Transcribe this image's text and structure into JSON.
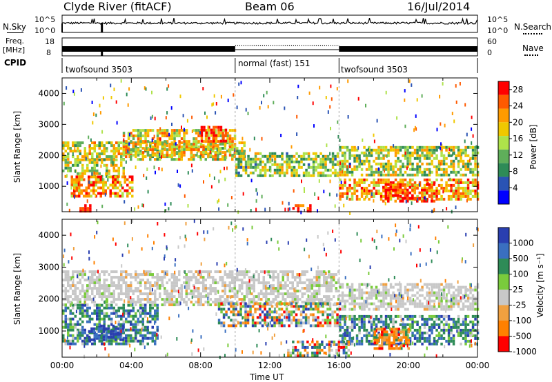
{
  "header": {
    "station": "Clyde River (fitACF)",
    "beam": "Beam 06",
    "date": "16/Jul/2014"
  },
  "noise_panel": {
    "left_label": "N.Sky",
    "left_ticks": [
      "10^5",
      "10^0"
    ],
    "right_label": "N.Search",
    "right_ticks": [
      "10^5",
      "10^0"
    ]
  },
  "freq_panel": {
    "left_label_line1": "Freq.",
    "left_label_line2": "[MHz]",
    "left_ticks": [
      "18",
      "8"
    ],
    "right_label": "Nave",
    "right_ticks": [
      "60",
      "0"
    ]
  },
  "cpid_panel": {
    "label": "CPID",
    "modes": [
      {
        "name": "twofsound 3503",
        "start_hour": 0,
        "end_hour": 10
      },
      {
        "name": "normal (fast) 151",
        "start_hour": 10,
        "end_hour": 16
      },
      {
        "name": "twofsound 3503",
        "start_hour": 16,
        "end_hour": 24
      }
    ]
  },
  "x_axis": {
    "label": "Time UT",
    "ticks": [
      "00:00",
      "04:00",
      "08:00",
      "12:00",
      "16:00",
      "20:00",
      "00:00"
    ],
    "range_hours": [
      0,
      24
    ]
  },
  "chart_data": [
    {
      "type": "heatmap",
      "name": "power",
      "ylabel": "Slant Range [km]",
      "y_ticks": [
        "1000",
        "2000",
        "3000",
        "4000"
      ],
      "ylim": [
        180,
        4500
      ],
      "xlim": [
        0,
        24
      ],
      "colorbar_label": "Power [dB]",
      "colorbar_ticks": [
        "4",
        "8",
        "12",
        "16",
        "20",
        "24",
        "28"
      ],
      "colorbar_range": [
        0,
        30
      ],
      "colors": [
        "#0000ff",
        "#2a53b4",
        "#2e8b57",
        "#5fae5a",
        "#aee24a",
        "#f0c800",
        "#ff9b00",
        "#ff5a00",
        "#ff0000"
      ],
      "echo_regions": [
        {
          "t": [
            0.0,
            10.5
          ],
          "r": [
            1900,
            2450
          ],
          "level": 0.55
        },
        {
          "t": [
            3.5,
            10.0
          ],
          "r": [
            2000,
            2850
          ],
          "level": 0.6
        },
        {
          "t": [
            8.0,
            9.5
          ],
          "r": [
            2500,
            2950
          ],
          "level": 0.85
        },
        {
          "t": [
            0.0,
            3.5
          ],
          "r": [
            1300,
            1900
          ],
          "level": 0.5
        },
        {
          "t": [
            0.5,
            4.0
          ],
          "r": [
            650,
            1350
          ],
          "level": 0.75
        },
        {
          "t": [
            10.0,
            16.0
          ],
          "r": [
            1300,
            2100
          ],
          "level": 0.45
        },
        {
          "t": [
            16.0,
            24.0
          ],
          "r": [
            1400,
            2300
          ],
          "level": 0.5
        },
        {
          "t": [
            16.0,
            24.0
          ],
          "r": [
            600,
            1250
          ],
          "level": 0.7
        },
        {
          "t": [
            18.5,
            21.5
          ],
          "r": [
            550,
            1100
          ],
          "level": 0.9
        },
        {
          "t": [
            1.0,
            1.6
          ],
          "r": [
            180,
            420
          ],
          "level": 1.0
        },
        {
          "t": [
            13.3,
            14.3
          ],
          "r": [
            180,
            420
          ],
          "level": 0.95
        }
      ]
    },
    {
      "type": "heatmap",
      "name": "velocity",
      "ylabel": "Slant Range [km]",
      "y_ticks": [
        "1000",
        "2000",
        "3000",
        "4000"
      ],
      "ylim": [
        180,
        4500
      ],
      "xlim": [
        0,
        24
      ],
      "colorbar_label": "Velocity [m s⁻¹]",
      "colorbar_ticks": [
        "1000",
        "500",
        "100",
        "25",
        "-25",
        "-100",
        "-500",
        "-1000"
      ],
      "colors": [
        "#2a3fb0",
        "#3a6fc0",
        "#2e8b57",
        "#7acb3c",
        "#c8c8c8",
        "#f0a040",
        "#ff8000",
        "#ff0000"
      ],
      "echo_regions": [
        {
          "t": [
            0.0,
            16.0
          ],
          "r": [
            1850,
            2900
          ],
          "cls": "ground"
        },
        {
          "t": [
            16.0,
            24.0
          ],
          "r": [
            1650,
            2500
          ],
          "cls": "ground"
        },
        {
          "t": [
            0.0,
            5.5
          ],
          "r": [
            600,
            1850
          ],
          "cls": "pos"
        },
        {
          "t": [
            1.5,
            3.5
          ],
          "r": [
            700,
            1200
          ],
          "cls": "strongpos"
        },
        {
          "t": [
            9.0,
            16.0
          ],
          "r": [
            1200,
            1900
          ],
          "cls": "mixed"
        },
        {
          "t": [
            16.0,
            24.0
          ],
          "r": [
            600,
            1500
          ],
          "cls": "pos"
        },
        {
          "t": [
            18.0,
            20.0
          ],
          "r": [
            450,
            1100
          ],
          "cls": "neg"
        },
        {
          "t": [
            13.0,
            16.5
          ],
          "r": [
            250,
            700
          ],
          "cls": "mixed"
        }
      ]
    }
  ]
}
